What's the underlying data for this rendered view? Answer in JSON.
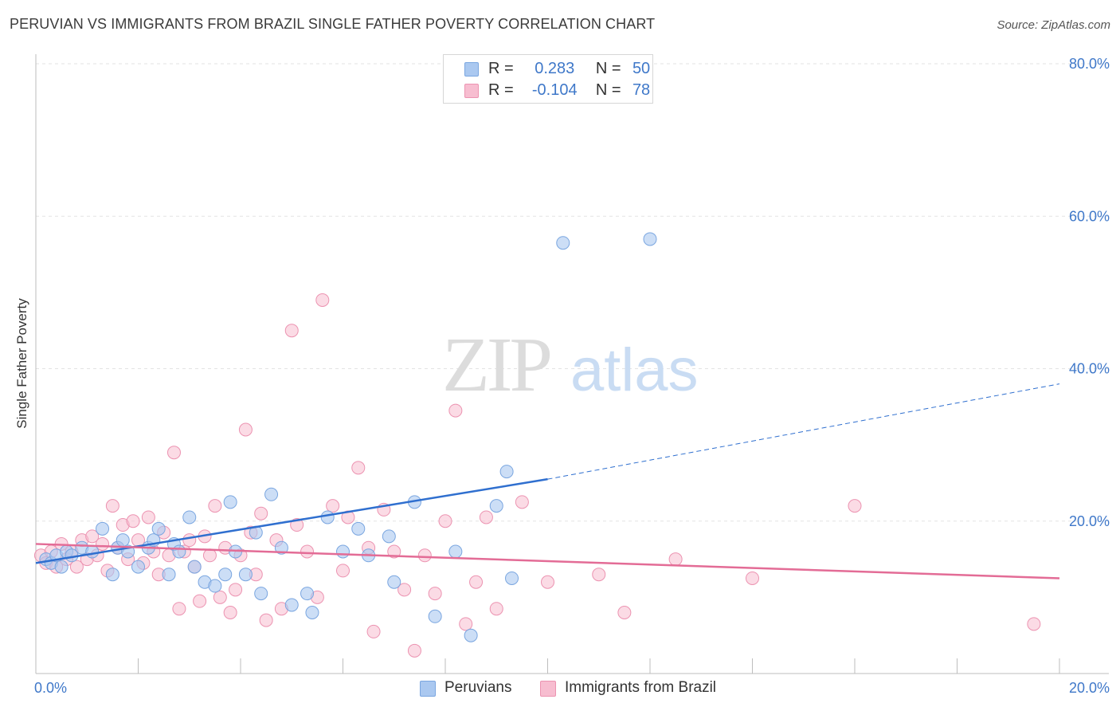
{
  "chart_data": {
    "type": "scatter",
    "title": "PERUVIAN VS IMMIGRANTS FROM BRAZIL SINGLE FATHER POVERTY CORRELATION CHART",
    "source": "Source: ZipAtlas.com",
    "ylabel": "Single Father Poverty",
    "xlabel": "",
    "xlim": [
      0,
      20
    ],
    "ylim": [
      0,
      80
    ],
    "x_tick_labels": [
      "0.0%",
      "20.0%"
    ],
    "y_tick_labels": [
      "20.0%",
      "40.0%",
      "60.0%",
      "80.0%"
    ],
    "y_tick_values": [
      20,
      40,
      60,
      80
    ],
    "watermark": {
      "zip": "ZIP",
      "atlas": "atlas"
    },
    "colors": {
      "peruvians_fill": "#aac8f0",
      "peruvians_stroke": "#7aa6e0",
      "peruvians_line": "#2f6fcf",
      "brazil_fill": "#f7bdd0",
      "brazil_stroke": "#ec93b1",
      "brazil_line": "#e36c96",
      "axis_text": "#3f78c9"
    },
    "legend": {
      "r_label": "R =",
      "n_label": "N =",
      "rows": [
        {
          "r": "0.283",
          "n": "50"
        },
        {
          "r": "-0.104",
          "n": "78"
        }
      ]
    },
    "series": [
      {
        "name": "Peruvians",
        "trend": {
          "x1": 0.0,
          "y1": 14.5,
          "x2": 10.0,
          "y2": 25.5,
          "dash_to_x": 20.0,
          "dash_to_y": 38.0
        },
        "points": [
          [
            0.2,
            15.0
          ],
          [
            0.3,
            14.5
          ],
          [
            0.4,
            15.5
          ],
          [
            0.5,
            14.0
          ],
          [
            0.6,
            16.0
          ],
          [
            0.7,
            15.5
          ],
          [
            0.9,
            16.5
          ],
          [
            1.1,
            16.0
          ],
          [
            1.3,
            19.0
          ],
          [
            1.5,
            13.0
          ],
          [
            1.6,
            16.5
          ],
          [
            1.7,
            17.5
          ],
          [
            1.8,
            16.0
          ],
          [
            2.0,
            14.0
          ],
          [
            2.2,
            16.5
          ],
          [
            2.3,
            17.5
          ],
          [
            2.4,
            19.0
          ],
          [
            2.6,
            13.0
          ],
          [
            2.7,
            17.0
          ],
          [
            2.8,
            16.0
          ],
          [
            3.0,
            20.5
          ],
          [
            3.1,
            14.0
          ],
          [
            3.3,
            12.0
          ],
          [
            3.5,
            11.5
          ],
          [
            3.7,
            13.0
          ],
          [
            3.8,
            22.5
          ],
          [
            3.9,
            16.0
          ],
          [
            4.1,
            13.0
          ],
          [
            4.3,
            18.5
          ],
          [
            4.4,
            10.5
          ],
          [
            4.6,
            23.5
          ],
          [
            4.8,
            16.5
          ],
          [
            5.0,
            9.0
          ],
          [
            5.3,
            10.5
          ],
          [
            5.4,
            8.0
          ],
          [
            5.7,
            20.5
          ],
          [
            6.0,
            16.0
          ],
          [
            6.3,
            19.0
          ],
          [
            6.5,
            15.5
          ],
          [
            6.9,
            18.0
          ],
          [
            7.0,
            12.0
          ],
          [
            7.4,
            22.5
          ],
          [
            7.8,
            7.5
          ],
          [
            8.2,
            16.0
          ],
          [
            8.5,
            5.0
          ],
          [
            9.0,
            22.0
          ],
          [
            9.2,
            26.5
          ],
          [
            9.3,
            12.5
          ],
          [
            10.3,
            56.5
          ],
          [
            12.0,
            57.0
          ]
        ]
      },
      {
        "name": "Immigrants from Brazil",
        "trend": {
          "x1": 0.0,
          "y1": 17.0,
          "x2": 20.0,
          "y2": 12.5
        },
        "points": [
          [
            0.1,
            15.5
          ],
          [
            0.2,
            14.5
          ],
          [
            0.3,
            16.0
          ],
          [
            0.4,
            14.0
          ],
          [
            0.5,
            17.0
          ],
          [
            0.6,
            15.0
          ],
          [
            0.7,
            16.0
          ],
          [
            0.8,
            14.0
          ],
          [
            0.9,
            17.5
          ],
          [
            1.0,
            15.0
          ],
          [
            1.1,
            18.0
          ],
          [
            1.2,
            15.5
          ],
          [
            1.3,
            17.0
          ],
          [
            1.4,
            13.5
          ],
          [
            1.5,
            22.0
          ],
          [
            1.6,
            16.5
          ],
          [
            1.7,
            19.5
          ],
          [
            1.8,
            15.0
          ],
          [
            1.9,
            20.0
          ],
          [
            2.0,
            17.5
          ],
          [
            2.1,
            14.5
          ],
          [
            2.2,
            20.5
          ],
          [
            2.3,
            16.0
          ],
          [
            2.4,
            13.0
          ],
          [
            2.5,
            18.5
          ],
          [
            2.6,
            15.5
          ],
          [
            2.7,
            29.0
          ],
          [
            2.8,
            8.5
          ],
          [
            2.9,
            16.0
          ],
          [
            3.0,
            17.5
          ],
          [
            3.1,
            14.0
          ],
          [
            3.2,
            9.5
          ],
          [
            3.3,
            18.0
          ],
          [
            3.4,
            15.5
          ],
          [
            3.5,
            22.0
          ],
          [
            3.6,
            10.0
          ],
          [
            3.7,
            16.5
          ],
          [
            3.8,
            8.0
          ],
          [
            3.9,
            11.0
          ],
          [
            4.0,
            15.5
          ],
          [
            4.1,
            32.0
          ],
          [
            4.2,
            18.5
          ],
          [
            4.3,
            13.0
          ],
          [
            4.4,
            21.0
          ],
          [
            4.5,
            7.0
          ],
          [
            4.7,
            17.5
          ],
          [
            4.8,
            8.5
          ],
          [
            5.0,
            45.0
          ],
          [
            5.1,
            19.5
          ],
          [
            5.3,
            16.0
          ],
          [
            5.5,
            10.0
          ],
          [
            5.6,
            49.0
          ],
          [
            5.8,
            22.0
          ],
          [
            6.0,
            13.5
          ],
          [
            6.1,
            20.5
          ],
          [
            6.3,
            27.0
          ],
          [
            6.5,
            16.5
          ],
          [
            6.6,
            5.5
          ],
          [
            6.8,
            21.5
          ],
          [
            7.0,
            16.0
          ],
          [
            7.2,
            11.0
          ],
          [
            7.4,
            3.0
          ],
          [
            7.6,
            15.5
          ],
          [
            7.8,
            10.5
          ],
          [
            8.0,
            20.0
          ],
          [
            8.2,
            34.5
          ],
          [
            8.4,
            6.5
          ],
          [
            8.6,
            12.0
          ],
          [
            8.8,
            20.5
          ],
          [
            9.0,
            8.5
          ],
          [
            9.5,
            22.5
          ],
          [
            10.0,
            12.0
          ],
          [
            11.0,
            13.0
          ],
          [
            11.5,
            8.0
          ],
          [
            12.5,
            15.0
          ],
          [
            14.0,
            12.5
          ],
          [
            16.0,
            22.0
          ],
          [
            19.5,
            6.5
          ]
        ]
      }
    ],
    "bottom_legend": [
      "Peruvians",
      "Immigrants from Brazil"
    ]
  }
}
